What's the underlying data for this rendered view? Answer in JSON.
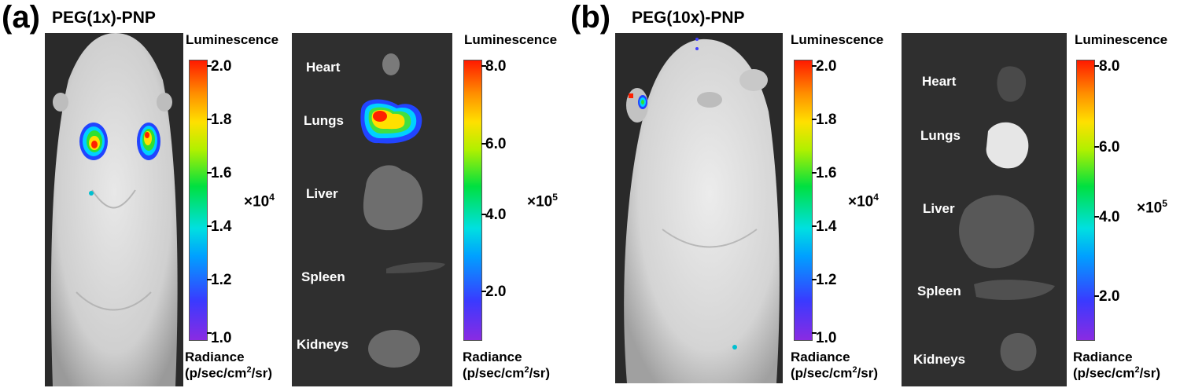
{
  "panels": [
    {
      "letter": "(a)",
      "title": "PEG(1x)-PNP",
      "body_scale": {
        "heading": "Luminescence",
        "ticks": [
          "2.0",
          "1.8",
          "1.6",
          "1.4",
          "1.2",
          "1.0"
        ],
        "multiplier_base": "×10",
        "multiplier_exp": "4",
        "unit_line1": "Radiance",
        "unit_line2_pre": "(p/sec/cm",
        "unit_line2_sup": "2",
        "unit_line2_post": "/sr)"
      },
      "organ_scale": {
        "heading": "Luminescence",
        "ticks": [
          "8.0",
          "6.0",
          "4.0",
          "2.0"
        ],
        "multiplier_base": "×10",
        "multiplier_exp": "5",
        "unit_line1": "Radiance",
        "unit_line2_pre": "(p/sec/cm",
        "unit_line2_sup": "2",
        "unit_line2_post": "/sr)"
      },
      "organs": [
        "Heart",
        "Lungs",
        "Liver",
        "Spleen",
        "Kidneys"
      ]
    },
    {
      "letter": "(b)",
      "title": "PEG(10x)-PNP",
      "body_scale": {
        "heading": "Luminescence",
        "ticks": [
          "2.0",
          "1.8",
          "1.6",
          "1.4",
          "1.2",
          "1.0"
        ],
        "multiplier_base": "×10",
        "multiplier_exp": "4",
        "unit_line1": "Radiance",
        "unit_line2_pre": "(p/sec/cm",
        "unit_line2_sup": "2",
        "unit_line2_post": "/sr)"
      },
      "organ_scale": {
        "heading": "Luminescence",
        "ticks": [
          "8.0",
          "6.0",
          "4.0",
          "2.0"
        ],
        "multiplier_base": "×10",
        "multiplier_exp": "5",
        "unit_line1": "Radiance",
        "unit_line2_pre": "(p/sec/cm",
        "unit_line2_sup": "2",
        "unit_line2_post": "/sr)"
      },
      "organs": [
        "Heart",
        "Lungs",
        "Liver",
        "Spleen",
        "Kidneys"
      ]
    }
  ]
}
